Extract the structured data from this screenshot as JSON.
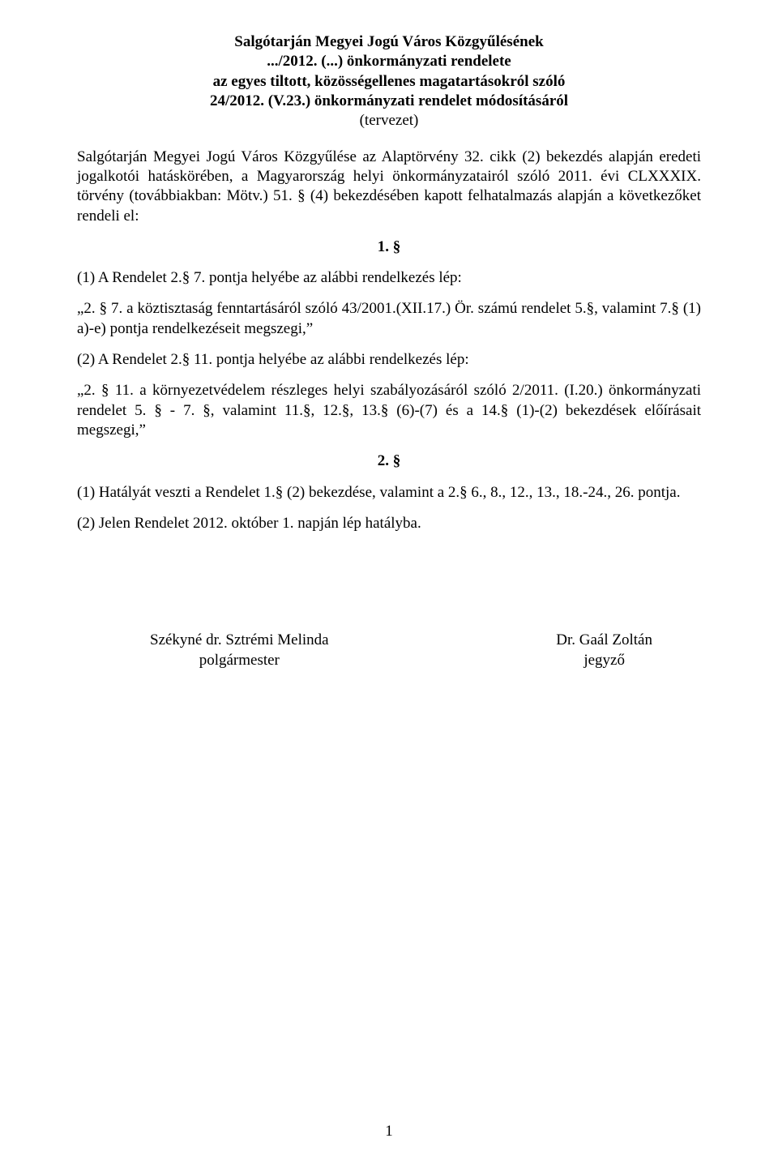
{
  "title": {
    "l1": "Salgótarján Megyei Jogú Város Közgyűlésének",
    "l2": ".../2012. (...) önkormányzati rendelete",
    "l3": "az egyes tiltott, közösségellenes magatartásokról szóló",
    "l4": "24/2012. (V.23.) önkormányzati rendelet módosításáról",
    "l5": "(tervezet)"
  },
  "intro": "Salgótarján Megyei Jogú Város Közgyűlése az Alaptörvény 32. cikk (2) bekezdés alapján eredeti jogalkotói hatáskörében, a Magyarország helyi önkormányzatairól szóló 2011. évi CLXXXIX. törvény (továbbiakban: Mötv.) 51. § (4) bekezdésében kapott felhatalmazás alapján a következőket rendeli el:",
  "sec1": "1. §",
  "p1": "(1) A Rendelet 2.§ 7. pontja helyébe az alábbi rendelkezés lép:",
  "p2": "„2. § 7. a köztisztaság fenntartásáról szóló 43/2001.(XII.17.) Ör. számú rendelet 5.§, valamint 7.§ (1) a)-e) pontja rendelkezéseit megszegi,”",
  "p3": "(2) A Rendelet 2.§ 11. pontja helyébe az alábbi rendelkezés lép:",
  "p4": "„2. § 11. a környezetvédelem részleges helyi szabályozásáról szóló 2/2011. (I.20.) önkormányzati rendelet 5. § - 7. §, valamint 11.§, 12.§, 13.§ (6)-(7) és a 14.§ (1)-(2) bekezdések előírásait megszegi,”",
  "sec2": "2. §",
  "p5": "(1) Hatályát veszti a Rendelet 1.§ (2) bekezdése, valamint a 2.§ 6., 8., 12., 13., 18.-24., 26. pontja.",
  "p6": "(2) Jelen Rendelet 2012. október 1. napján lép hatályba.",
  "sig": {
    "left_name": "Székyné dr. Sztrémi Melinda",
    "left_role": "polgármester",
    "right_name": "Dr. Gaál Zoltán",
    "right_role": "jegyző"
  },
  "page_number": "1"
}
